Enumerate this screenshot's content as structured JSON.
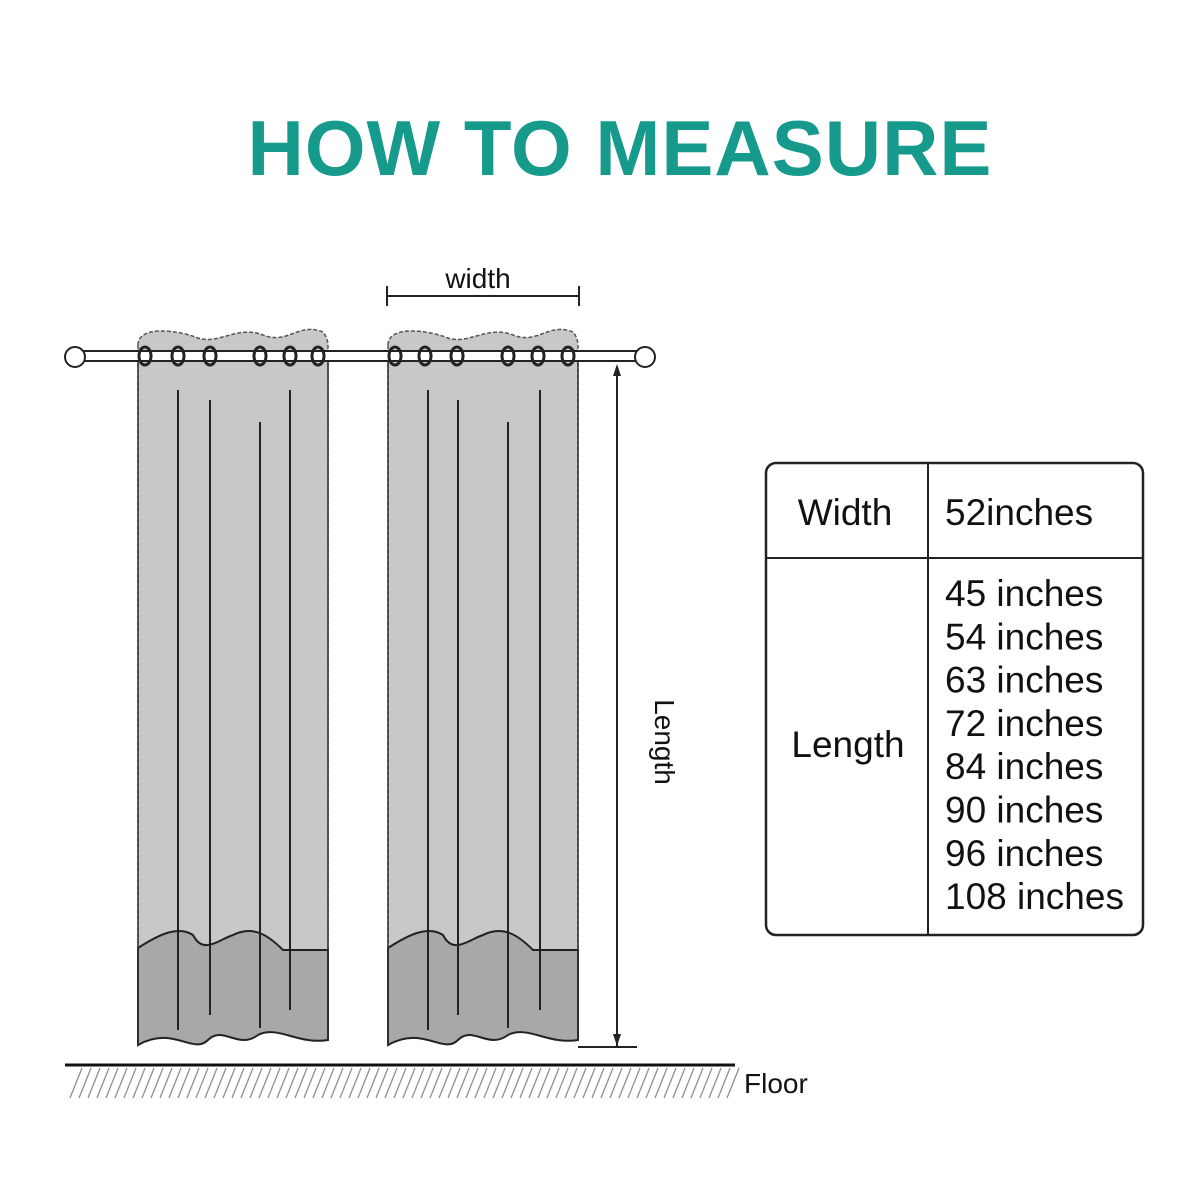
{
  "title": "HOW TO MEASURE",
  "labels": {
    "width": "width",
    "length": "Length",
    "floor": "Floor"
  },
  "table": {
    "rows": [
      {
        "label": "Width",
        "values": [
          "52inches"
        ]
      },
      {
        "label": "Length",
        "values": [
          "45 inches",
          "54 inches",
          "63 inches",
          "72 inches",
          "84 inches",
          "90 inches",
          "96 inches",
          "108 inches"
        ]
      }
    ]
  },
  "colors": {
    "title": "#169a8c",
    "curtain_light": "#c8c8c8",
    "curtain_dark": "#a8a8a8"
  }
}
